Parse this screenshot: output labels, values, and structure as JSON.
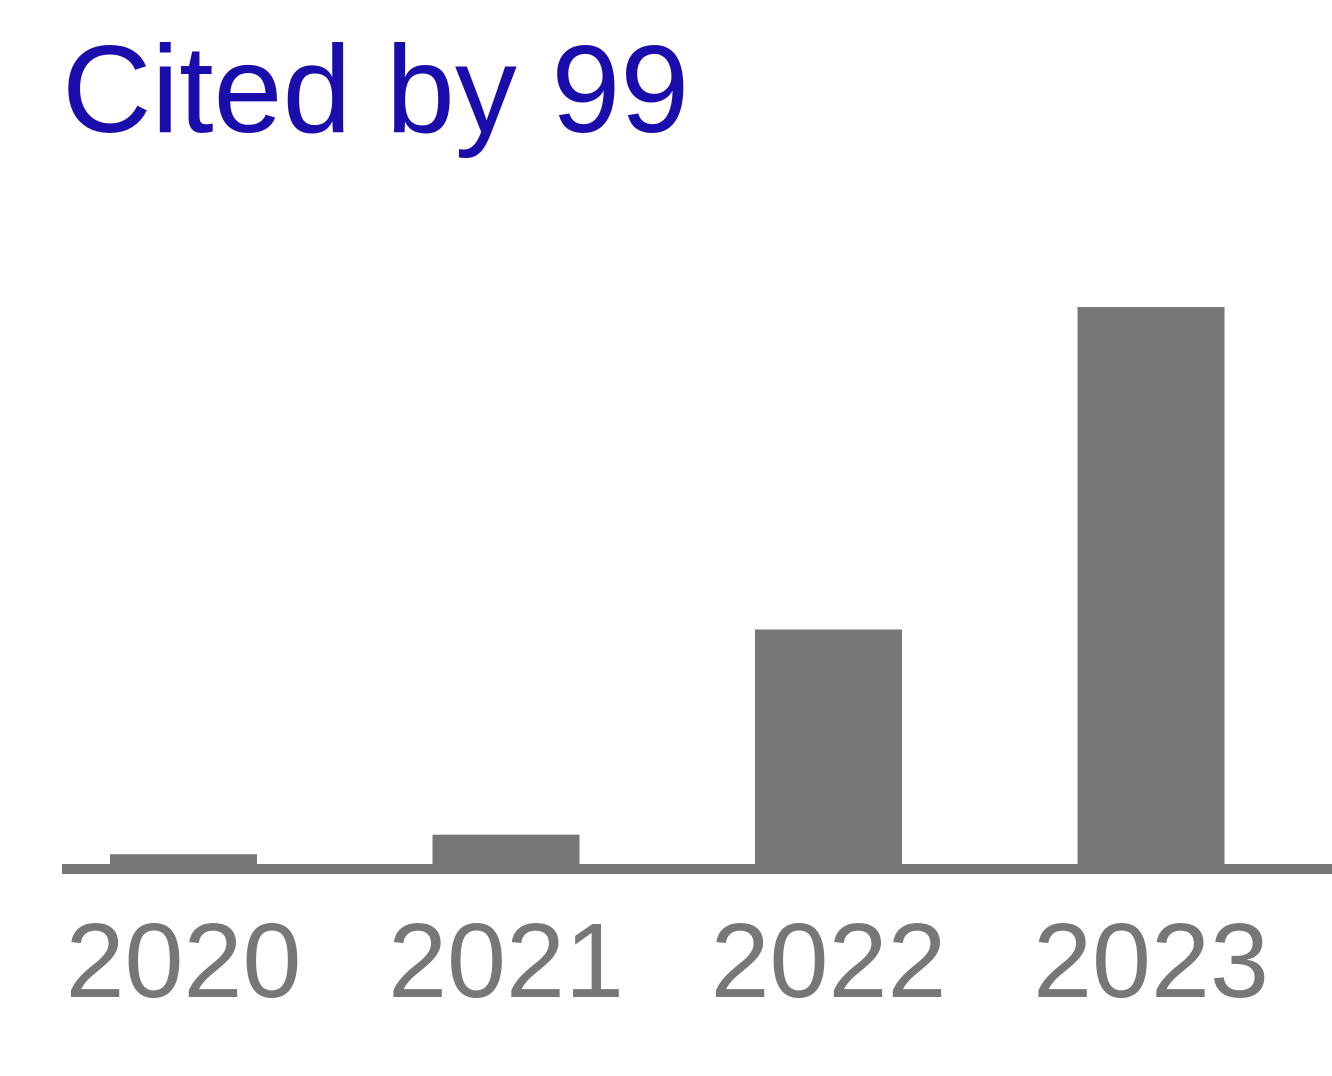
{
  "header": {
    "cited_by_label": "Cited by 99"
  },
  "colors": {
    "link": "#1a0dab",
    "bar": "#777777",
    "axis": "#777777",
    "tick_label": "#777777"
  },
  "chart_data": {
    "type": "bar",
    "categories": [
      "2020",
      "2021",
      "2022",
      "2023"
    ],
    "values": [
      1,
      3,
      24,
      57
    ],
    "title": "",
    "xlabel": "",
    "ylabel": "",
    "ylim": [
      0,
      57
    ],
    "grid": false,
    "legend": "none"
  }
}
